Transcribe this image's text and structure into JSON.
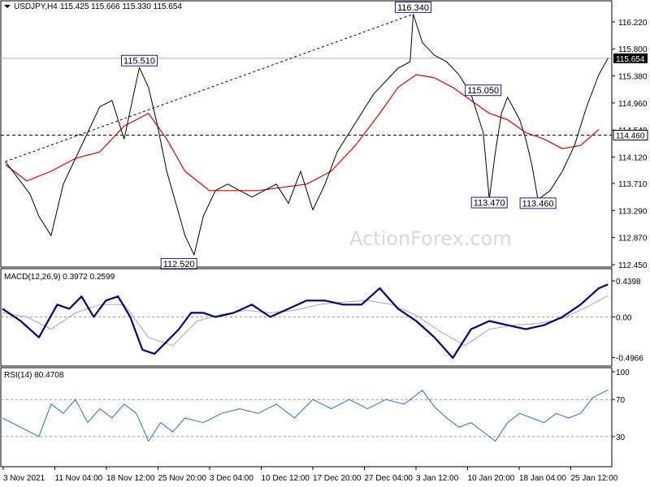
{
  "header": {
    "symbol_tf": "USDJPY,H4",
    "ohlc": "115.425 115.666 115.330 115.654",
    "dropdown_icon": "triangle-down-icon"
  },
  "watermark": "ActionForex.com",
  "colors": {
    "price": "#000000",
    "ma": "#d40000",
    "macd": "#00007a",
    "signal": "#a8a8a8",
    "rsi": "#2e6fb7",
    "grid": "#9a9a9a"
  },
  "chart_data": [
    {
      "type": "line",
      "pane": "price",
      "title": "USDJPY,H4 115.425 115.666 115.330 115.654",
      "ylim": [
        112.45,
        116.37
      ],
      "y_ticks": [
        "116.220",
        "115.800",
        "115.380",
        "114.960",
        "114.540",
        "114.120",
        "113.710",
        "113.290",
        "112.870",
        "112.450"
      ],
      "x_ticks": [
        "3 Nov 2021",
        "11 Nov 04:00",
        "18 Nov 12:00",
        "25 Nov 20:00",
        "3 Dec 04:00",
        "10 Dec 12:00",
        "17 Dec 20:00",
        "27 Dec 04:00",
        "3 Jan 12:00",
        "10 Jan 20:00",
        "18 Jan 04:00",
        "25 Jan 12:00"
      ],
      "last_price": "115.654",
      "hline_label": "114.460",
      "hline_value": 114.46,
      "annotations": [
        {
          "text": "116.340",
          "x": 0.675,
          "y": 116.34
        },
        {
          "text": "115.510",
          "x": 0.225,
          "y": 115.51
        },
        {
          "text": "115.050",
          "x": 0.79,
          "y": 115.05
        },
        {
          "text": "113.470",
          "x": 0.8,
          "y": 113.47
        },
        {
          "text": "113.460",
          "x": 0.88,
          "y": 113.46
        },
        {
          "text": "112.520",
          "x": 0.29,
          "y": 112.52
        }
      ],
      "trendline": [
        [
          0.005,
          114.05
        ],
        [
          0.675,
          116.34
        ]
      ],
      "series": [
        {
          "x": [
            0.005,
            0.025,
            0.045,
            0.06,
            0.08,
            0.1,
            0.12,
            0.14,
            0.16,
            0.18,
            0.2,
            0.225,
            0.24,
            0.255,
            0.27,
            0.285,
            0.3,
            0.315,
            0.33,
            0.35,
            0.37,
            0.39,
            0.41,
            0.43,
            0.45,
            0.47,
            0.49,
            0.51,
            0.53,
            0.55,
            0.57,
            0.59,
            0.61,
            0.63,
            0.65,
            0.67,
            0.675,
            0.69,
            0.71,
            0.73,
            0.75,
            0.77,
            0.79,
            0.8,
            0.81,
            0.82,
            0.83,
            0.85,
            0.86,
            0.87,
            0.88,
            0.9,
            0.92,
            0.94,
            0.96,
            0.98,
            0.995
          ],
          "values": [
            114.05,
            113.8,
            113.55,
            113.2,
            112.9,
            113.7,
            114.1,
            114.5,
            114.9,
            115.0,
            114.4,
            115.51,
            115.2,
            114.6,
            113.9,
            113.4,
            112.9,
            112.6,
            113.2,
            113.6,
            113.7,
            113.6,
            113.5,
            113.6,
            113.7,
            113.4,
            113.9,
            113.3,
            113.7,
            114.2,
            114.5,
            114.8,
            115.1,
            115.3,
            115.5,
            115.6,
            116.34,
            115.9,
            115.7,
            115.6,
            115.4,
            115.1,
            114.5,
            113.47,
            114.2,
            114.8,
            115.05,
            114.7,
            114.4,
            114.0,
            113.46,
            113.6,
            113.9,
            114.3,
            114.9,
            115.4,
            115.654
          ]
        },
        {
          "x": [
            0.005,
            0.04,
            0.08,
            0.12,
            0.16,
            0.2,
            0.24,
            0.27,
            0.3,
            0.34,
            0.38,
            0.42,
            0.46,
            0.5,
            0.54,
            0.58,
            0.62,
            0.65,
            0.68,
            0.71,
            0.74,
            0.77,
            0.8,
            0.83,
            0.86,
            0.89,
            0.92,
            0.95,
            0.98
          ],
          "values": [
            114.0,
            113.75,
            113.9,
            114.1,
            114.2,
            114.6,
            114.8,
            114.4,
            113.9,
            113.6,
            113.6,
            113.6,
            113.65,
            113.7,
            113.9,
            114.3,
            114.8,
            115.2,
            115.4,
            115.35,
            115.2,
            115.0,
            114.8,
            114.7,
            114.5,
            114.4,
            114.25,
            114.3,
            114.55
          ]
        }
      ]
    },
    {
      "type": "line",
      "pane": "macd",
      "title": "MACD(12,26,9) 0.3972 0.2599",
      "ylim": [
        -0.54,
        0.5
      ],
      "y_ticks": [
        "0.4398",
        "0.00",
        "-0.4966"
      ],
      "series": [
        {
          "x": [
            0.0,
            0.03,
            0.06,
            0.09,
            0.11,
            0.13,
            0.15,
            0.17,
            0.19,
            0.21,
            0.23,
            0.25,
            0.27,
            0.29,
            0.31,
            0.33,
            0.35,
            0.38,
            0.41,
            0.44,
            0.47,
            0.5,
            0.53,
            0.56,
            0.59,
            0.62,
            0.65,
            0.68,
            0.71,
            0.74,
            0.77,
            0.8,
            0.83,
            0.86,
            0.89,
            0.92,
            0.95,
            0.98,
            0.995
          ],
          "values": [
            0.1,
            -0.05,
            -0.25,
            0.15,
            0.1,
            0.25,
            0.0,
            0.2,
            0.25,
            0.0,
            -0.4,
            -0.45,
            -0.3,
            -0.15,
            0.05,
            0.05,
            0.0,
            0.05,
            0.15,
            0.0,
            0.1,
            0.2,
            0.2,
            0.15,
            0.15,
            0.35,
            0.1,
            -0.05,
            -0.25,
            -0.5,
            -0.15,
            -0.05,
            -0.1,
            -0.15,
            -0.1,
            0.0,
            0.15,
            0.35,
            0.3972
          ]
        },
        {
          "x": [
            0.0,
            0.04,
            0.08,
            0.12,
            0.16,
            0.2,
            0.24,
            0.28,
            0.32,
            0.36,
            0.4,
            0.44,
            0.48,
            0.52,
            0.56,
            0.6,
            0.64,
            0.68,
            0.72,
            0.76,
            0.8,
            0.84,
            0.88,
            0.92,
            0.96,
            0.995
          ],
          "values": [
            0.05,
            0.0,
            -0.15,
            0.05,
            0.15,
            0.15,
            -0.25,
            -0.35,
            -0.05,
            0.03,
            0.08,
            0.05,
            0.08,
            0.15,
            0.18,
            0.2,
            0.15,
            0.02,
            -0.18,
            -0.35,
            -0.15,
            -0.1,
            -0.08,
            -0.02,
            0.12,
            0.2599
          ]
        }
      ]
    },
    {
      "type": "line",
      "pane": "rsi",
      "title": "RSI(14) 80.4708",
      "ylim": [
        0,
        100
      ],
      "y_ticks": [
        "100",
        "70",
        "30"
      ],
      "levels": [
        70,
        30
      ],
      "series": [
        {
          "x": [
            0.0,
            0.03,
            0.06,
            0.08,
            0.1,
            0.12,
            0.14,
            0.16,
            0.18,
            0.2,
            0.22,
            0.24,
            0.26,
            0.28,
            0.3,
            0.33,
            0.36,
            0.39,
            0.42,
            0.45,
            0.48,
            0.51,
            0.54,
            0.57,
            0.6,
            0.63,
            0.66,
            0.69,
            0.71,
            0.73,
            0.75,
            0.77,
            0.79,
            0.81,
            0.83,
            0.85,
            0.87,
            0.89,
            0.91,
            0.93,
            0.95,
            0.97,
            0.995
          ],
          "values": [
            50,
            40,
            30,
            65,
            55,
            70,
            45,
            60,
            50,
            65,
            55,
            25,
            45,
            35,
            50,
            45,
            55,
            60,
            55,
            65,
            50,
            70,
            60,
            70,
            60,
            70,
            65,
            80,
            62,
            50,
            40,
            45,
            35,
            25,
            45,
            55,
            50,
            45,
            55,
            50,
            55,
            72,
            80.4708
          ]
        }
      ]
    }
  ]
}
